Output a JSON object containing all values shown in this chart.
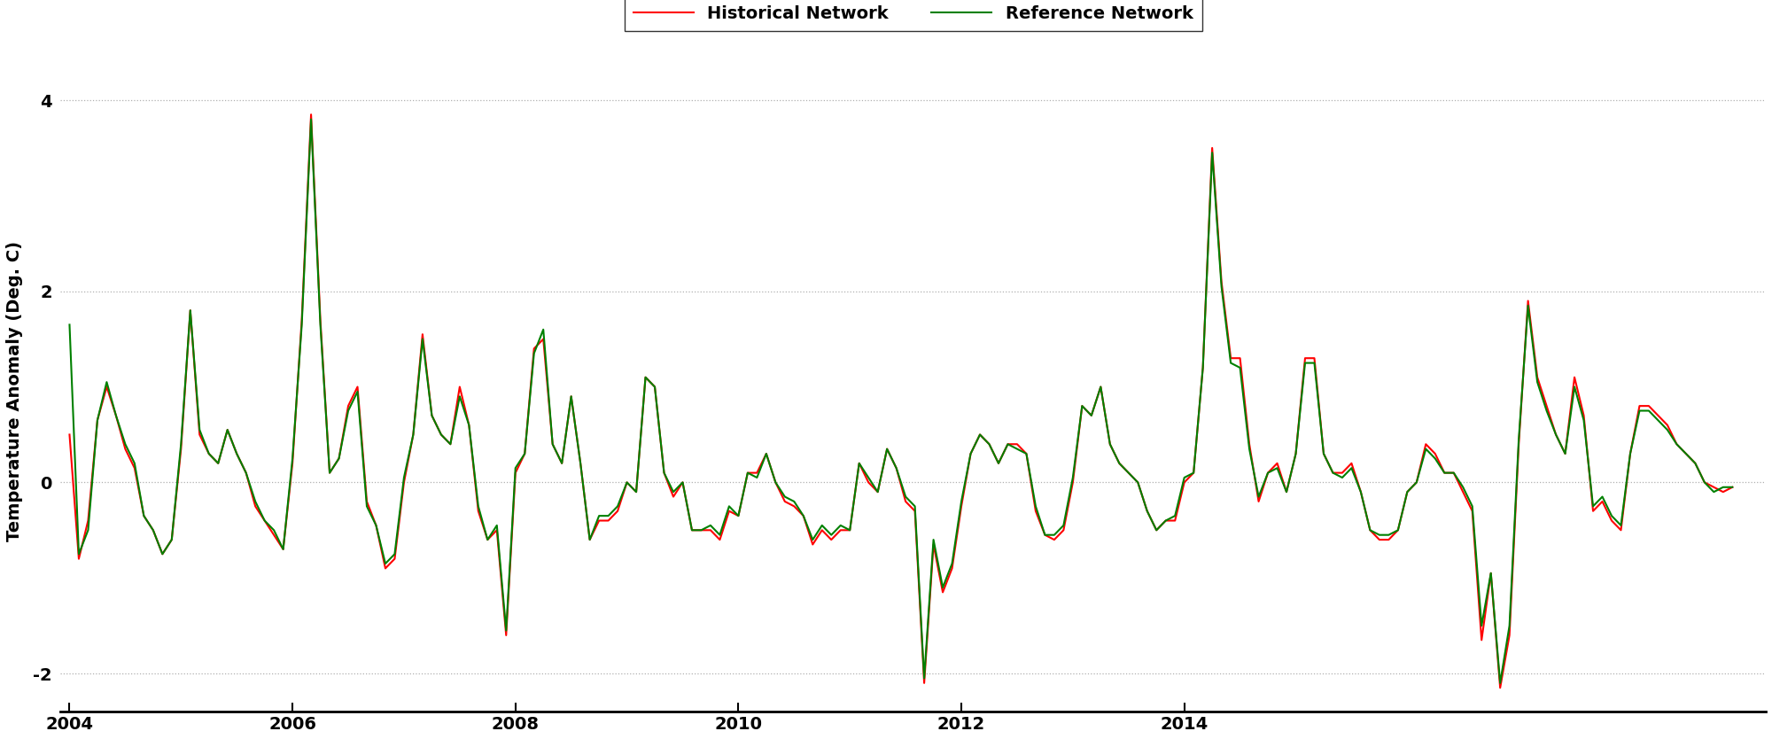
{
  "historical_network": [
    0.5,
    -0.8,
    -0.4,
    0.65,
    1.0,
    0.7,
    0.35,
    0.15,
    -0.35,
    -0.5,
    -0.75,
    -0.6,
    0.35,
    1.8,
    0.5,
    0.3,
    0.2,
    0.55,
    0.3,
    0.1,
    -0.25,
    -0.4,
    -0.55,
    -0.7,
    0.2,
    1.7,
    3.85,
    1.7,
    0.1,
    0.25,
    0.8,
    1.0,
    -0.2,
    -0.45,
    -0.9,
    -0.8,
    0.0,
    0.5,
    1.55,
    0.7,
    0.5,
    0.4,
    1.0,
    0.6,
    -0.3,
    -0.6,
    -0.5,
    -1.6,
    0.1,
    0.3,
    1.4,
    1.5,
    0.4,
    0.2,
    0.9,
    0.2,
    -0.6,
    -0.4,
    -0.4,
    -0.3,
    0.0,
    -0.1,
    1.1,
    1.0,
    0.1,
    -0.15,
    0.0,
    -0.5,
    -0.5,
    -0.5,
    -0.6,
    -0.3,
    -0.35,
    0.1,
    0.1,
    0.3,
    0.0,
    -0.2,
    -0.25,
    -0.35,
    -0.65,
    -0.5,
    -0.6,
    -0.5,
    -0.5,
    0.2,
    0.0,
    -0.1,
    0.35,
    0.15,
    -0.2,
    -0.3,
    -2.1,
    -0.65,
    -1.15,
    -0.9,
    -0.25,
    0.3,
    0.5,
    0.4,
    0.2,
    0.4,
    0.4,
    0.3,
    -0.3,
    -0.55,
    -0.6,
    -0.5,
    0.0,
    0.8,
    0.7,
    1.0,
    0.4,
    0.2,
    0.1,
    0.0,
    -0.3,
    -0.5,
    -0.4,
    -0.4,
    0.0,
    0.1,
    1.2,
    3.5,
    2.1,
    1.3,
    1.3,
    0.4,
    -0.2,
    0.1,
    0.2,
    -0.1,
    0.3,
    1.3,
    1.3,
    0.3,
    0.1,
    0.1,
    0.2,
    -0.1,
    -0.5,
    -0.6,
    -0.6,
    -0.5,
    -0.1,
    0.0,
    0.4,
    0.3,
    0.1,
    0.1,
    -0.1,
    -0.3,
    -1.65,
    -0.95,
    -2.15,
    -1.6,
    0.4,
    1.9,
    1.1,
    0.8,
    0.5,
    0.3,
    1.1,
    0.7,
    -0.3,
    -0.2,
    -0.4,
    -0.5,
    0.3,
    0.8,
    0.8,
    0.7,
    0.6,
    0.4,
    0.3,
    0.2,
    0.0,
    -0.05,
    -0.1,
    -0.05
  ],
  "reference_network": [
    1.65,
    -0.75,
    -0.5,
    0.65,
    1.05,
    0.7,
    0.4,
    0.2,
    -0.35,
    -0.5,
    -0.75,
    -0.6,
    0.4,
    1.8,
    0.55,
    0.3,
    0.2,
    0.55,
    0.3,
    0.1,
    -0.2,
    -0.4,
    -0.5,
    -0.7,
    0.25,
    1.65,
    3.8,
    1.65,
    0.1,
    0.25,
    0.75,
    0.95,
    -0.25,
    -0.45,
    -0.85,
    -0.75,
    0.05,
    0.5,
    1.5,
    0.7,
    0.5,
    0.4,
    0.9,
    0.6,
    -0.25,
    -0.6,
    -0.45,
    -1.55,
    0.15,
    0.3,
    1.35,
    1.6,
    0.4,
    0.2,
    0.9,
    0.2,
    -0.6,
    -0.35,
    -0.35,
    -0.25,
    0.0,
    -0.1,
    1.1,
    1.0,
    0.1,
    -0.1,
    0.0,
    -0.5,
    -0.5,
    -0.45,
    -0.55,
    -0.25,
    -0.35,
    0.1,
    0.05,
    0.3,
    0.0,
    -0.15,
    -0.2,
    -0.35,
    -0.6,
    -0.45,
    -0.55,
    -0.45,
    -0.5,
    0.2,
    0.05,
    -0.1,
    0.35,
    0.15,
    -0.15,
    -0.25,
    -2.05,
    -0.6,
    -1.1,
    -0.85,
    -0.2,
    0.3,
    0.5,
    0.4,
    0.2,
    0.4,
    0.35,
    0.3,
    -0.25,
    -0.55,
    -0.55,
    -0.45,
    0.05,
    0.8,
    0.7,
    1.0,
    0.4,
    0.2,
    0.1,
    0.0,
    -0.3,
    -0.5,
    -0.4,
    -0.35,
    0.05,
    0.1,
    1.2,
    3.45,
    2.05,
    1.25,
    1.2,
    0.35,
    -0.15,
    0.1,
    0.15,
    -0.1,
    0.3,
    1.25,
    1.25,
    0.3,
    0.1,
    0.05,
    0.15,
    -0.1,
    -0.5,
    -0.55,
    -0.55,
    -0.5,
    -0.1,
    0.0,
    0.35,
    0.25,
    0.1,
    0.1,
    -0.05,
    -0.25,
    -1.5,
    -0.95,
    -2.1,
    -1.5,
    0.45,
    1.85,
    1.05,
    0.75,
    0.5,
    0.3,
    1.0,
    0.65,
    -0.25,
    -0.15,
    -0.35,
    -0.45,
    0.3,
    0.75,
    0.75,
    0.65,
    0.55,
    0.4,
    0.3,
    0.2,
    0.0,
    -0.1,
    -0.05,
    -0.05
  ],
  "start_year": 2004,
  "start_month": 1,
  "yticks": [
    -2,
    0,
    2,
    4
  ],
  "xticks": [
    2004,
    2006,
    2008,
    2010,
    2012,
    2014
  ],
  "ylim": [
    -2.4,
    4.3
  ],
  "historical_color": "#ff0000",
  "reference_color": "#008000",
  "historical_label": "Historical Network",
  "reference_label": "Reference Network",
  "ylabel": "Temperature Anomaly (Deg. C)",
  "linewidth": 1.5,
  "grid_color": "#b0b0b0",
  "background_color": "#ffffff",
  "legend_fontsize": 14,
  "axis_fontsize": 14,
  "tick_fontsize": 14
}
